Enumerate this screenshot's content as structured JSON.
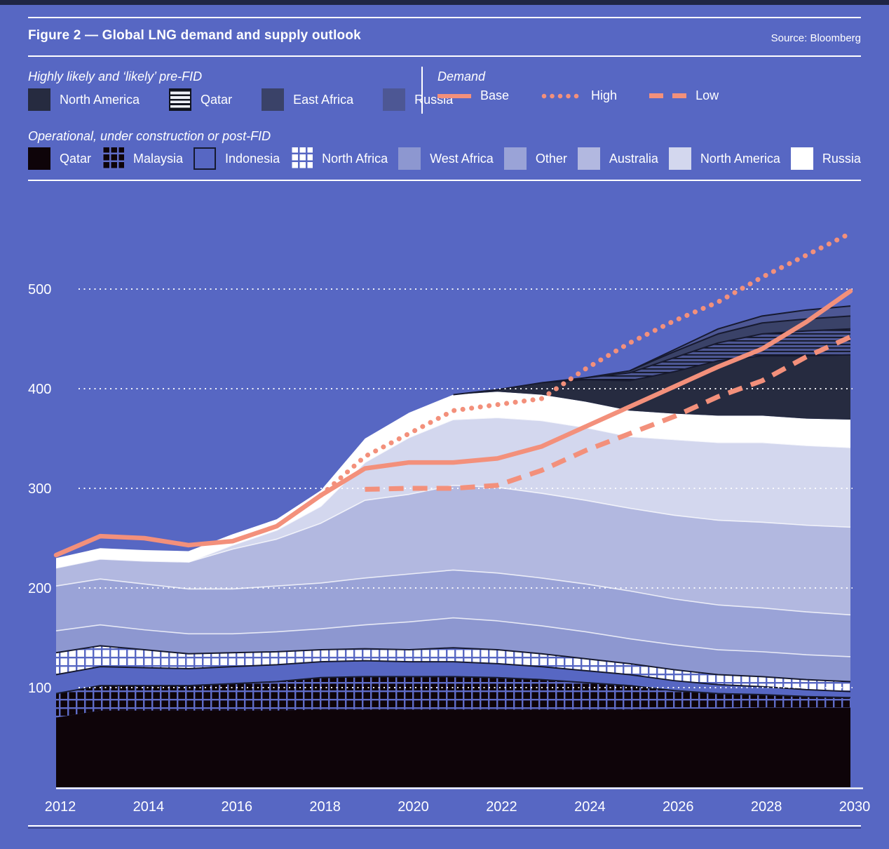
{
  "header": {
    "title": "Figure 2 — Global LNG demand and supply outlook",
    "source": "Source: Bloomberg"
  },
  "legend": {
    "pre_fid": {
      "label": "Highly likely and ‘likely’ pre-FID"
    },
    "demand": {
      "label": "Demand"
    },
    "operational": {
      "label": "Operational, under construction or post-FID"
    }
  },
  "colors": {
    "background": "#5767c3",
    "accent_bar": "#1f2544",
    "text": "#ffffff",
    "demand_line": "#f3907b",
    "dark_edge": "#171a30",
    "light_edge": "rgba(255,255,255,0.78)"
  },
  "chart_data": {
    "type": "area",
    "stacked": true,
    "title": "Figure 2 — Global LNG demand and supply outlook",
    "x": [
      2012,
      2013,
      2014,
      2015,
      2016,
      2017,
      2018,
      2019,
      2020,
      2021,
      2022,
      2023,
      2024,
      2025,
      2026,
      2027,
      2028,
      2029,
      2030
    ],
    "x_ticks": [
      2012,
      2014,
      2016,
      2018,
      2020,
      2022,
      2024,
      2026,
      2028,
      2030
    ],
    "y_ticks": [
      100,
      200,
      300,
      400,
      500
    ],
    "ylim": [
      0,
      580
    ],
    "grid": "horizontal-dotted",
    "legend_position": "top",
    "supply_series_bottom_to_top": [
      {
        "name": "Qatar",
        "group": "operational",
        "fill": "#0e0409",
        "edge": null,
        "values": [
          70,
          77,
          77,
          77,
          77,
          77,
          78,
          78,
          78,
          78,
          78,
          78,
          78,
          78,
          79,
          79,
          80,
          80,
          80
        ]
      },
      {
        "name": "Malaysia",
        "group": "operational",
        "fill": "pattern:grid-dark",
        "edge": "dark",
        "values": [
          24,
          25,
          25,
          25,
          27,
          29,
          32,
          33,
          33,
          33,
          32,
          30,
          27,
          24,
          18,
          15,
          13,
          11,
          10
        ]
      },
      {
        "name": "Indonesia",
        "group": "operational",
        "fill": "#5767c3",
        "edge": "dark",
        "swatch": "outline",
        "values": [
          19,
          19,
          18,
          17,
          17,
          17,
          16,
          16,
          15,
          15,
          14,
          13,
          12,
          11,
          10,
          9,
          8,
          7,
          6
        ]
      },
      {
        "name": "North Africa",
        "group": "operational",
        "fill": "pattern:grid-light",
        "edge": "dark",
        "values": [
          22,
          21,
          18,
          15,
          14,
          13,
          12,
          12,
          12,
          14,
          14,
          13,
          12,
          11,
          11,
          10,
          10,
          10,
          10
        ]
      },
      {
        "name": "West Africa",
        "group": "operational",
        "fill": "#8d97d0",
        "edge": "light",
        "values": [
          22,
          21,
          20,
          20,
          19,
          20,
          21,
          24,
          28,
          30,
          29,
          28,
          27,
          25,
          25,
          25,
          25,
          25,
          25
        ]
      },
      {
        "name": "Other",
        "group": "operational",
        "fill": "#9aa3d7",
        "edge": "light",
        "values": [
          45,
          46,
          46,
          45,
          45,
          46,
          46,
          47,
          48,
          48,
          48,
          48,
          48,
          48,
          46,
          45,
          44,
          43,
          42
        ]
      },
      {
        "name": "Australia",
        "group": "operational",
        "fill": "#b2b8e0",
        "edge": "light",
        "values": [
          18,
          20,
          23,
          27,
          40,
          47,
          60,
          78,
          80,
          85,
          86,
          85,
          84,
          83,
          84,
          85,
          86,
          87,
          88
        ]
      },
      {
        "name": "North America",
        "group": "operational",
        "fill": "#d3d7ee",
        "edge": "light",
        "values": [
          0,
          0,
          0,
          0,
          4,
          9,
          17,
          38,
          57,
          66,
          70,
          73,
          73,
          72,
          76,
          78,
          80,
          80,
          80
        ]
      },
      {
        "name": "Russia",
        "group": "operational",
        "fill": "#ffffff",
        "edge": null,
        "values": [
          10,
          11,
          11,
          11,
          11,
          11,
          16,
          24,
          25,
          25,
          26,
          26,
          26,
          26,
          26,
          27,
          27,
          27,
          28
        ]
      },
      {
        "name": "North America",
        "group": "pre-FID",
        "fill": "#262b40",
        "edge": "dark",
        "values": [
          0,
          0,
          0,
          0,
          0,
          0,
          0,
          0,
          0,
          0,
          2,
          12,
          22,
          30,
          42,
          55,
          60,
          63,
          65
        ]
      },
      {
        "name": "Qatar",
        "group": "pre-FID",
        "fill": "pattern:hstripes",
        "edge": "dark",
        "values": [
          0,
          0,
          0,
          0,
          0,
          0,
          0,
          0,
          0,
          0,
          0,
          0,
          2,
          8,
          14,
          18,
          22,
          25,
          26
        ]
      },
      {
        "name": "East Africa",
        "group": "pre-FID",
        "fill": "#3a4268",
        "edge": "dark",
        "values": [
          0,
          0,
          0,
          0,
          0,
          0,
          0,
          0,
          0,
          0,
          0,
          0,
          0,
          2,
          6,
          9,
          11,
          12,
          13
        ]
      },
      {
        "name": "Russia",
        "group": "pre-FID",
        "fill": "#4d5794",
        "edge": "dark",
        "values": [
          0,
          0,
          0,
          0,
          0,
          0,
          0,
          0,
          0,
          0,
          0,
          0,
          0,
          0,
          2,
          5,
          7,
          9,
          10
        ]
      }
    ],
    "demand_lines": [
      {
        "name": "Base",
        "style": "solid",
        "start_year": 2012,
        "values": [
          233,
          252,
          250,
          243,
          247,
          262,
          293,
          320,
          326,
          326,
          330,
          342,
          362,
          382,
          402,
          422,
          440,
          467,
          498
        ]
      },
      {
        "name": "High",
        "style": "dotted",
        "start_year": 2018,
        "values": [
          293,
          332,
          355,
          378,
          384,
          390,
          420,
          446,
          468,
          487,
          512,
          534,
          556
        ]
      },
      {
        "name": "Low",
        "style": "dashed",
        "start_year": 2019,
        "values": [
          299,
          300,
          300,
          303,
          318,
          338,
          355,
          372,
          392,
          408,
          432,
          452
        ]
      }
    ]
  }
}
